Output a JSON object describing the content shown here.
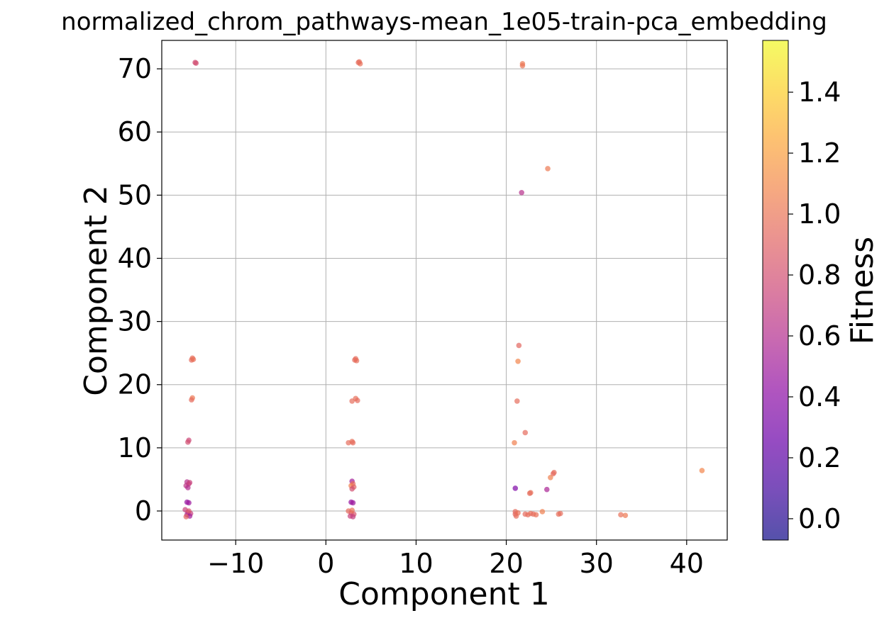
{
  "chart_data": {
    "type": "scatter",
    "title": "normalized_chrom_pathways-mean_1e05-train-pca_embedding",
    "xlabel": "Component 1",
    "ylabel": "Component 2",
    "xlim": [
      -18.2,
      44.5
    ],
    "ylim": [
      -4.6,
      74.5
    ],
    "xticks": [
      -10,
      0,
      10,
      20,
      30,
      40
    ],
    "xtick_labels": [
      "−10",
      "0",
      "10",
      "20",
      "30",
      "40"
    ],
    "yticks": [
      0,
      10,
      20,
      30,
      40,
      50,
      60,
      70
    ],
    "ytick_labels": [
      "0",
      "10",
      "20",
      "30",
      "40",
      "50",
      "60",
      "70"
    ],
    "grid": true,
    "colorbar": {
      "label": "Fitness",
      "colormap": "plasma",
      "alpha": 0.7,
      "range": [
        -0.07,
        1.57
      ],
      "ticks": [
        0.0,
        0.2,
        0.4,
        0.6,
        0.8,
        1.0,
        1.2,
        1.4
      ],
      "tick_labels": [
        "0.0",
        "0.2",
        "0.4",
        "0.6",
        "0.8",
        "1.0",
        "1.2",
        "1.4"
      ]
    },
    "points": [
      {
        "x": -14.5,
        "y": 71.0,
        "c": 0.78
      },
      {
        "x": -14.4,
        "y": 70.9,
        "c": 0.8
      },
      {
        "x": 3.6,
        "y": 71.0,
        "c": 0.95
      },
      {
        "x": 3.8,
        "y": 70.8,
        "c": 0.98
      },
      {
        "x": 3.7,
        "y": 71.1,
        "c": 0.96
      },
      {
        "x": 21.8,
        "y": 70.8,
        "c": 1.02
      },
      {
        "x": 21.8,
        "y": 70.5,
        "c": 1.0
      },
      {
        "x": 24.6,
        "y": 54.2,
        "c": 1.02
      },
      {
        "x": 21.7,
        "y": 50.4,
        "c": 0.62
      },
      {
        "x": -14.8,
        "y": 24.2,
        "c": 0.97
      },
      {
        "x": -14.9,
        "y": 23.9,
        "c": 0.95
      },
      {
        "x": -14.7,
        "y": 24.0,
        "c": 0.98
      },
      {
        "x": 3.3,
        "y": 24.1,
        "c": 0.96
      },
      {
        "x": 3.4,
        "y": 23.8,
        "c": 0.97
      },
      {
        "x": 3.2,
        "y": 23.9,
        "c": 0.95
      },
      {
        "x": -14.8,
        "y": 17.9,
        "c": 1.02
      },
      {
        "x": -14.9,
        "y": 17.6,
        "c": 0.95
      },
      {
        "x": 2.9,
        "y": 17.4,
        "c": 0.96
      },
      {
        "x": 3.3,
        "y": 17.8,
        "c": 0.97
      },
      {
        "x": 3.5,
        "y": 17.5,
        "c": 0.95
      },
      {
        "x": 21.4,
        "y": 26.2,
        "c": 0.93
      },
      {
        "x": 21.3,
        "y": 23.7,
        "c": 1.08
      },
      {
        "x": 21.2,
        "y": 17.4,
        "c": 0.96
      },
      {
        "x": 22.1,
        "y": 12.4,
        "c": 0.95
      },
      {
        "x": 20.9,
        "y": 10.8,
        "c": 1.05
      },
      {
        "x": -15.2,
        "y": 11.2,
        "c": 0.75
      },
      {
        "x": -15.3,
        "y": 10.9,
        "c": 0.8
      },
      {
        "x": 2.5,
        "y": 10.8,
        "c": 0.96
      },
      {
        "x": 2.9,
        "y": 11.0,
        "c": 0.98
      },
      {
        "x": 3.0,
        "y": 10.8,
        "c": 0.95
      },
      {
        "x": 25.3,
        "y": 6.1,
        "c": 0.96
      },
      {
        "x": 25.2,
        "y": 5.9,
        "c": 0.94
      },
      {
        "x": 24.9,
        "y": 5.3,
        "c": 1.05
      },
      {
        "x": 41.7,
        "y": 6.4,
        "c": 1.08
      },
      {
        "x": 22.7,
        "y": 2.9,
        "c": 0.98
      },
      {
        "x": 22.6,
        "y": 2.8,
        "c": 0.96
      },
      {
        "x": 21.0,
        "y": 3.6,
        "c": 0.35
      },
      {
        "x": 24.5,
        "y": 3.4,
        "c": 0.55
      },
      {
        "x": -15.4,
        "y": 4.6,
        "c": 0.62
      },
      {
        "x": -15.2,
        "y": 4.3,
        "c": 0.7
      },
      {
        "x": -15.5,
        "y": 4.0,
        "c": 0.66
      },
      {
        "x": -15.3,
        "y": 3.7,
        "c": 0.6
      },
      {
        "x": -15.1,
        "y": 4.5,
        "c": 0.72
      },
      {
        "x": -15.4,
        "y": 1.4,
        "c": 0.45
      },
      {
        "x": -15.2,
        "y": 1.3,
        "c": 0.48
      },
      {
        "x": 2.9,
        "y": 4.7,
        "c": 0.52
      },
      {
        "x": 3.0,
        "y": 4.3,
        "c": 0.95
      },
      {
        "x": 2.8,
        "y": 4.0,
        "c": 1.05
      },
      {
        "x": 3.1,
        "y": 3.8,
        "c": 0.9
      },
      {
        "x": 2.9,
        "y": 3.5,
        "c": 0.8
      },
      {
        "x": 2.8,
        "y": 1.4,
        "c": 0.45
      },
      {
        "x": 3.0,
        "y": 1.3,
        "c": 0.48
      },
      {
        "x": -15.6,
        "y": 0.2,
        "c": 0.72
      },
      {
        "x": -15.3,
        "y": -0.2,
        "c": 0.75
      },
      {
        "x": -15.0,
        "y": -0.4,
        "c": 0.7
      },
      {
        "x": -15.4,
        "y": -0.6,
        "c": 0.55
      },
      {
        "x": -15.1,
        "y": -0.8,
        "c": 0.52
      },
      {
        "x": -15.5,
        "y": -0.9,
        "c": 0.92
      },
      {
        "x": -15.2,
        "y": 0.0,
        "c": 0.85
      },
      {
        "x": 2.5,
        "y": 0.0,
        "c": 0.95
      },
      {
        "x": 2.8,
        "y": -0.3,
        "c": 0.9
      },
      {
        "x": 3.1,
        "y": -0.5,
        "c": 0.85
      },
      {
        "x": 2.7,
        "y": -0.8,
        "c": 0.72
      },
      {
        "x": 3.0,
        "y": -0.9,
        "c": 0.7
      },
      {
        "x": 2.9,
        "y": 0.1,
        "c": 0.98
      },
      {
        "x": 21.0,
        "y": -0.1,
        "c": 0.95
      },
      {
        "x": 21.0,
        "y": -0.5,
        "c": 0.93
      },
      {
        "x": 21.1,
        "y": -0.8,
        "c": 0.96
      },
      {
        "x": 21.3,
        "y": -0.3,
        "c": 0.98
      },
      {
        "x": 22.1,
        "y": -0.5,
        "c": 0.95
      },
      {
        "x": 22.4,
        "y": -0.6,
        "c": 0.96
      },
      {
        "x": 22.7,
        "y": -0.4,
        "c": 0.97
      },
      {
        "x": 23.0,
        "y": -0.5,
        "c": 0.95
      },
      {
        "x": 23.3,
        "y": -0.6,
        "c": 0.98
      },
      {
        "x": 24.0,
        "y": -0.1,
        "c": 1.05
      },
      {
        "x": 25.8,
        "y": -0.5,
        "c": 0.97
      },
      {
        "x": 26.0,
        "y": -0.4,
        "c": 0.96
      },
      {
        "x": 32.7,
        "y": -0.6,
        "c": 0.98
      },
      {
        "x": 33.2,
        "y": -0.7,
        "c": 1.02
      }
    ]
  }
}
